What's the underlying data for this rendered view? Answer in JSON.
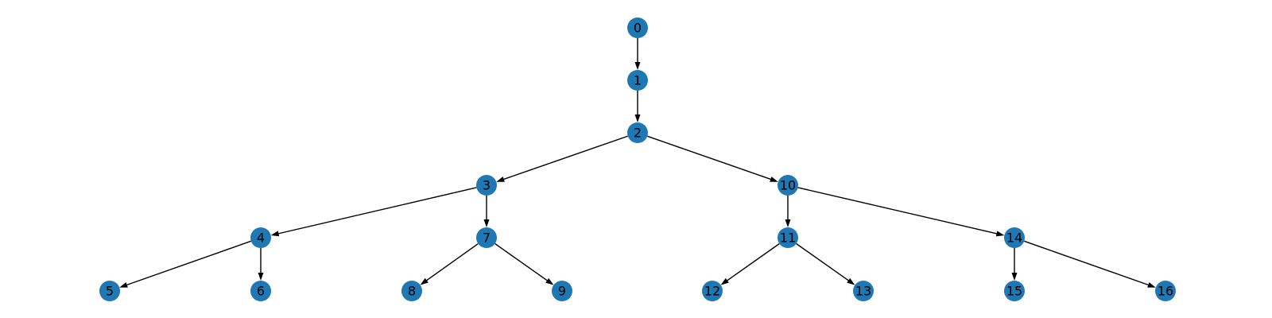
{
  "colors": {
    "node_fill": "#1f77b4",
    "edge": "#000000",
    "label": "#000000",
    "background": "#ffffff"
  },
  "nodes": [
    {
      "id": "0",
      "label": "0"
    },
    {
      "id": "1",
      "label": "1"
    },
    {
      "id": "2",
      "label": "2"
    },
    {
      "id": "3",
      "label": "3"
    },
    {
      "id": "4",
      "label": "4"
    },
    {
      "id": "5",
      "label": "5"
    },
    {
      "id": "6",
      "label": "6"
    },
    {
      "id": "7",
      "label": "7"
    },
    {
      "id": "8",
      "label": "8"
    },
    {
      "id": "9",
      "label": "9"
    },
    {
      "id": "10",
      "label": "10"
    },
    {
      "id": "11",
      "label": "11"
    },
    {
      "id": "12",
      "label": "12"
    },
    {
      "id": "13",
      "label": "13"
    },
    {
      "id": "14",
      "label": "14"
    },
    {
      "id": "15",
      "label": "15"
    },
    {
      "id": "16",
      "label": "16"
    }
  ],
  "edges": [
    {
      "from": "0",
      "to": "1"
    },
    {
      "from": "1",
      "to": "2"
    },
    {
      "from": "2",
      "to": "3"
    },
    {
      "from": "2",
      "to": "10"
    },
    {
      "from": "3",
      "to": "4"
    },
    {
      "from": "3",
      "to": "7"
    },
    {
      "from": "4",
      "to": "5"
    },
    {
      "from": "4",
      "to": "6"
    },
    {
      "from": "7",
      "to": "8"
    },
    {
      "from": "7",
      "to": "9"
    },
    {
      "from": "10",
      "to": "11"
    },
    {
      "from": "10",
      "to": "14"
    },
    {
      "from": "11",
      "to": "12"
    },
    {
      "from": "11",
      "to": "13"
    },
    {
      "from": "14",
      "to": "15"
    },
    {
      "from": "14",
      "to": "16"
    }
  ]
}
